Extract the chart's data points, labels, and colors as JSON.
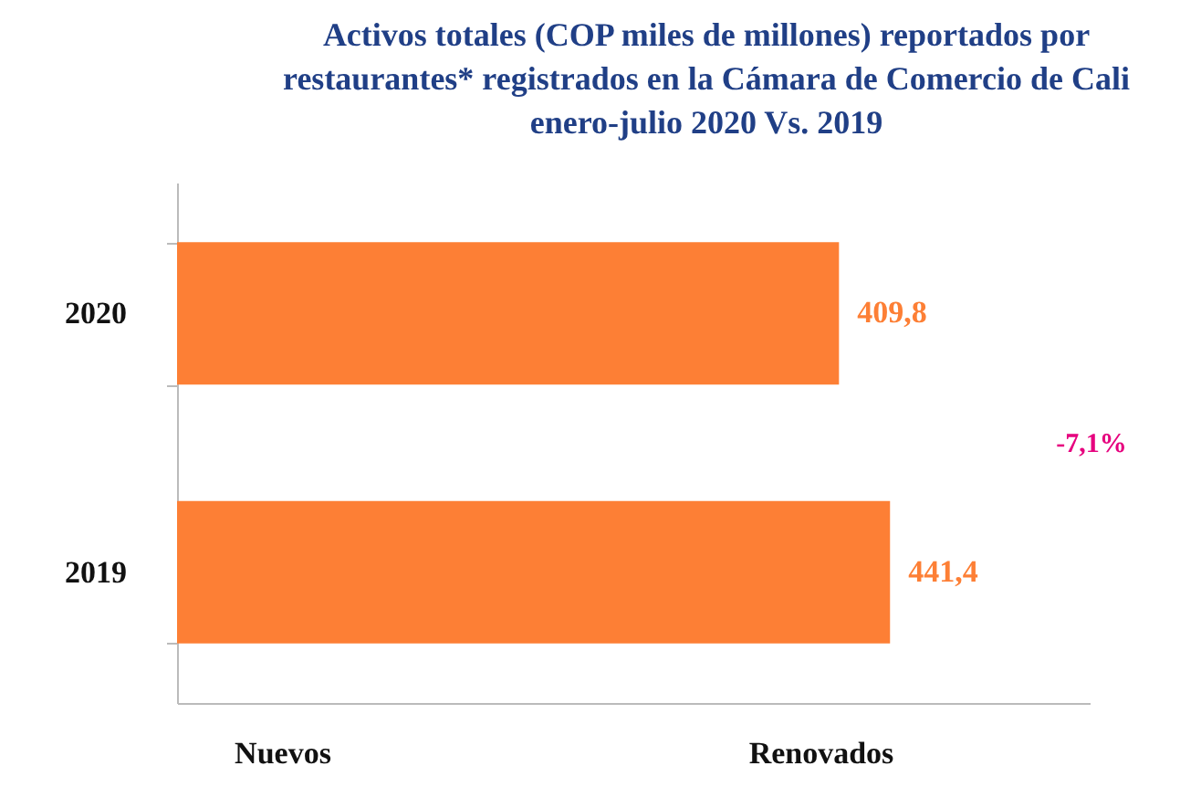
{
  "chart_data": {
    "type": "bar",
    "orientation": "horizontal",
    "title": "Activos totales (COP miles de millones) reportados por\nrestaurantes* registrados en la Cámara de Comercio de Cali\nenero-julio 2020 Vs. 2019",
    "categories": [
      "2020",
      "2019"
    ],
    "values": [
      409.8,
      441.4
    ],
    "value_labels": [
      "409,8",
      "441,4"
    ],
    "color": "#fd7f35",
    "annotations": [
      "-7,1%",
      "Nuevos",
      "Renovados"
    ],
    "tick_labels": "y",
    "grid": false
  }
}
